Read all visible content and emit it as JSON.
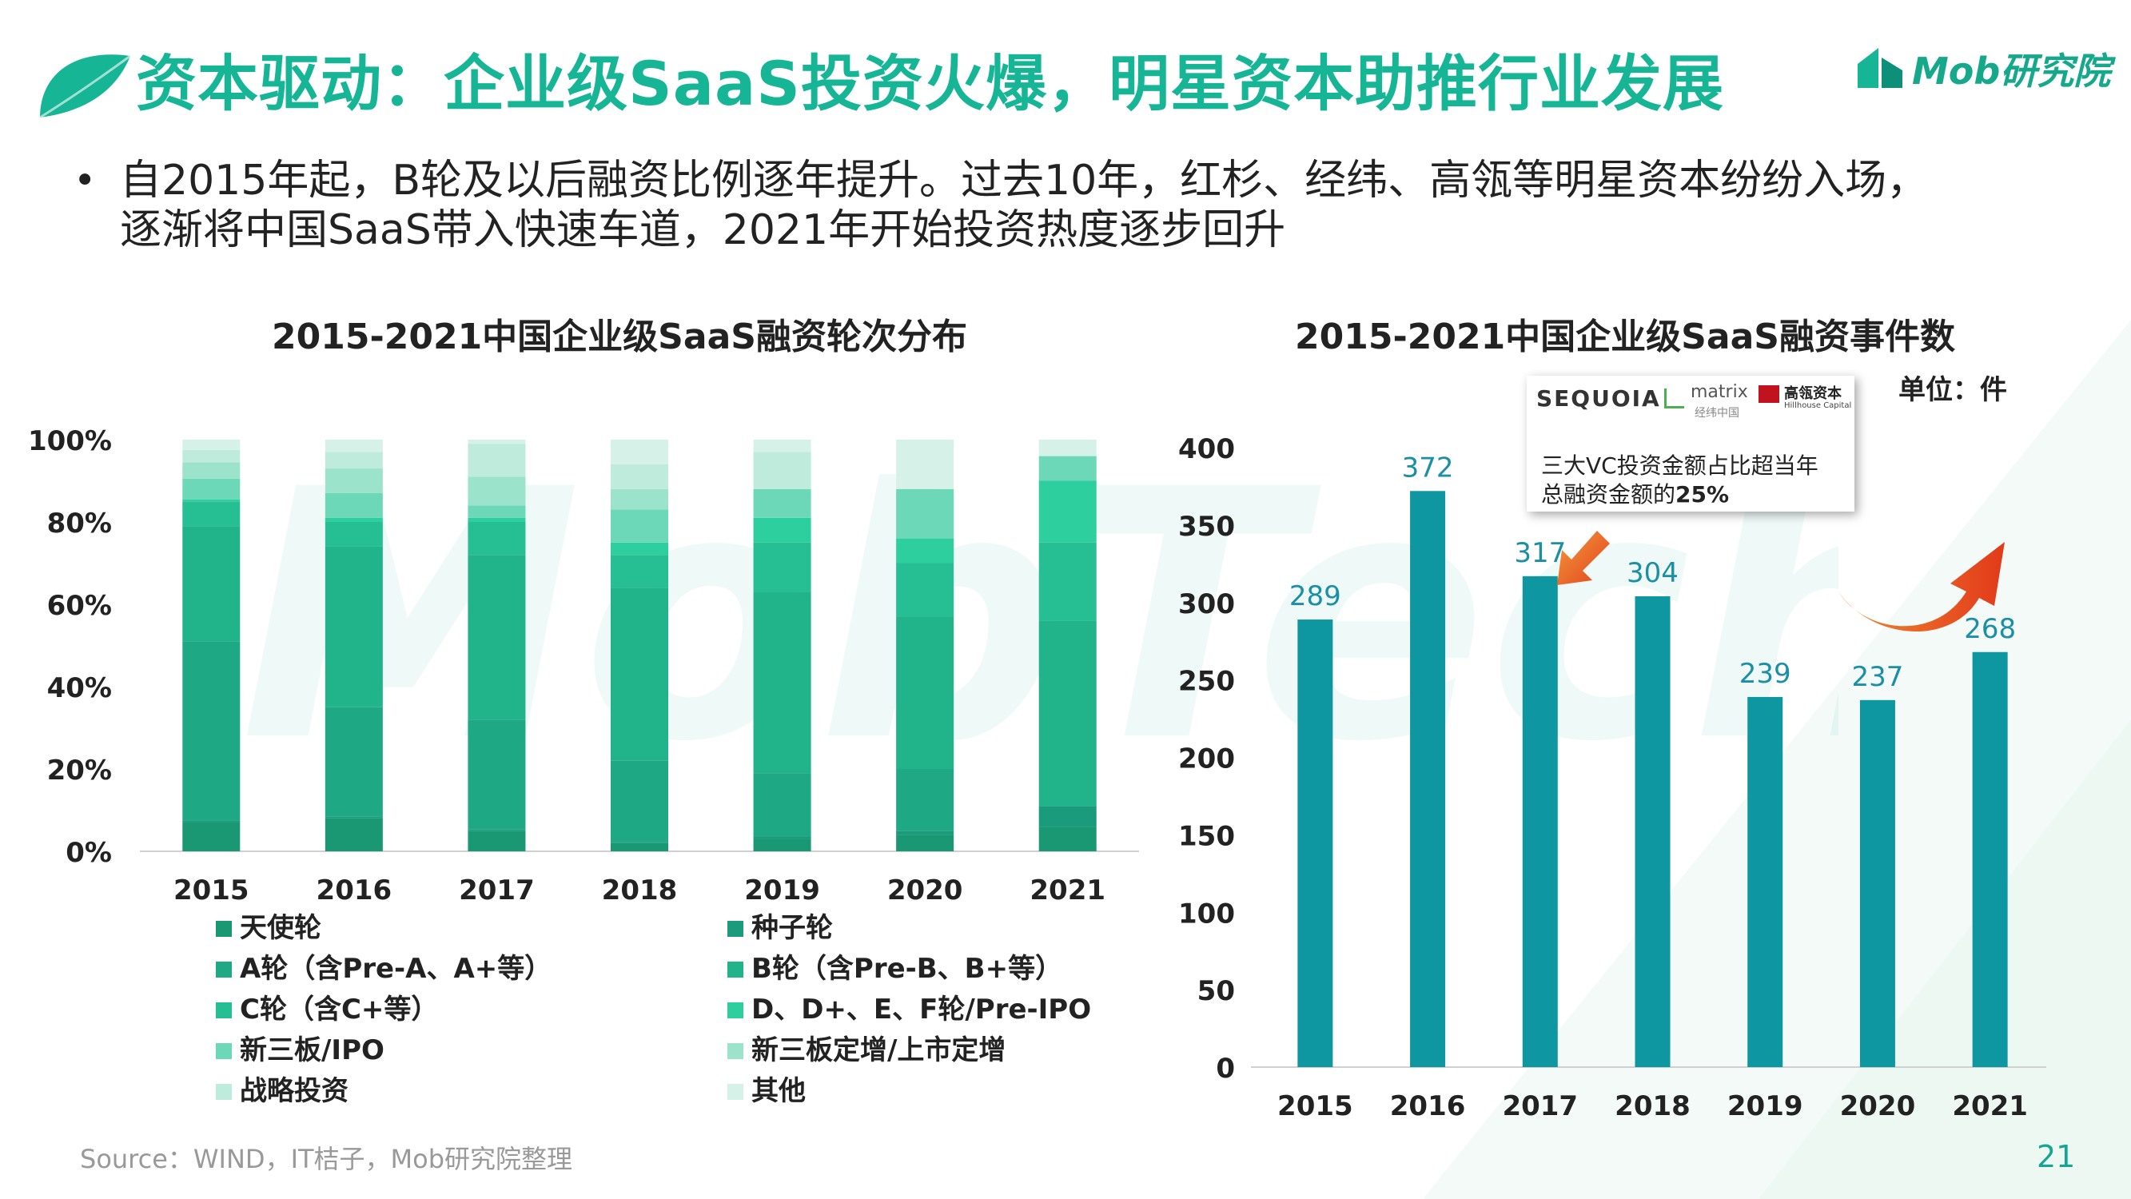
{
  "header": {
    "title": "资本驱动：企业级SaaS投资火爆，明星资本助推行业发展",
    "brand": "Mob研究院",
    "accent": "#16b596"
  },
  "summary": {
    "line1": "自2015年起，B轮及以后融资比例逐年提升。过去10年，红杉、经纬、高瓴等明星资本纷纷入场，",
    "line2": "逐渐将中国SaaS带入快速车道，2021年开始投资热度逐步回升"
  },
  "watermark": "MobTech",
  "charts": [
    {
      "title": "2015-2021中国企业级SaaS融资轮次分布",
      "type": "bar",
      "stacked": true,
      "categories": [
        "2015",
        "2016",
        "2017",
        "2018",
        "2019",
        "2020",
        "2021"
      ],
      "ylim": [
        0,
        100
      ],
      "y_ticks": [
        "0%",
        "20%",
        "40%",
        "60%",
        "80%",
        "100%"
      ],
      "series": [
        {
          "name": "天使轮",
          "color": "#1a9874",
          "values": [
            7,
            8,
            5,
            2,
            3,
            4,
            6
          ]
        },
        {
          "name": "种子轮",
          "color": "#1a9c7c",
          "values": [
            0.5,
            0.5,
            0.3,
            0.3,
            0.5,
            1,
            5
          ]
        },
        {
          "name": "A轮（含Pre-A、A+等）",
          "color": "#1fa884",
          "values": [
            43.5,
            26.5,
            26.7,
            19.7,
            15.5,
            15,
            0
          ]
        },
        {
          "name": "B轮（含Pre-B、B+等）",
          "color": "#21b389",
          "values": [
            28,
            39,
            40,
            42,
            44,
            37,
            45
          ]
        },
        {
          "name": "C轮（含C+等）",
          "color": "#26be93",
          "values": [
            6,
            6,
            8,
            8,
            12,
            13,
            19
          ]
        },
        {
          "name": "D、D+、E、F轮/Pre-IPO",
          "color": "#2ecf9f",
          "values": [
            0.5,
            1,
            1,
            3,
            6,
            6,
            15
          ]
        },
        {
          "name": "新三板/IPO",
          "color": "#6cd8b8",
          "values": [
            5,
            6,
            3,
            8,
            7,
            12,
            6
          ]
        },
        {
          "name": "新三板定增/上市定增",
          "color": "#9ce3cb",
          "values": [
            4,
            6,
            7,
            5,
            0,
            0,
            0
          ]
        },
        {
          "name": "战略投资",
          "color": "#bfebdc",
          "values": [
            3,
            4,
            8,
            6,
            9,
            0,
            0
          ]
        },
        {
          "name": "其他",
          "color": "#d6f2e8",
          "values": [
            2.5,
            3,
            1,
            6,
            3,
            12,
            4
          ]
        }
      ]
    },
    {
      "title": "2015-2021中国企业级SaaS融资事件数",
      "type": "bar",
      "unit_label": "单位：件",
      "categories": [
        "2015",
        "2016",
        "2017",
        "2018",
        "2019",
        "2020",
        "2021"
      ],
      "values": [
        289,
        372,
        317,
        304,
        239,
        237,
        268
      ],
      "ylim": [
        0,
        400
      ],
      "y_ticks": [
        "0",
        "50",
        "100",
        "150",
        "200",
        "250",
        "300",
        "350",
        "400"
      ],
      "bar_color": "#0e97a0",
      "label_color": "#1a8fa6",
      "annotation": {
        "logo_sequoia": "SEQUOIA",
        "logo_matrix": "matrix",
        "logo_matrix_sub": "经纬中国",
        "logo_hillhouse": "高瓴资本",
        "logo_hillhouse_sub": "Hillhouse Capital",
        "text_line1": "三大VC投资金额占比超当年",
        "text_line2_prefix": "总融资金额的",
        "text_line2_bold": "25%"
      }
    }
  ],
  "footer": {
    "source": "Source：WIND，IT桔子，Mob研究院整理",
    "page": "21"
  }
}
